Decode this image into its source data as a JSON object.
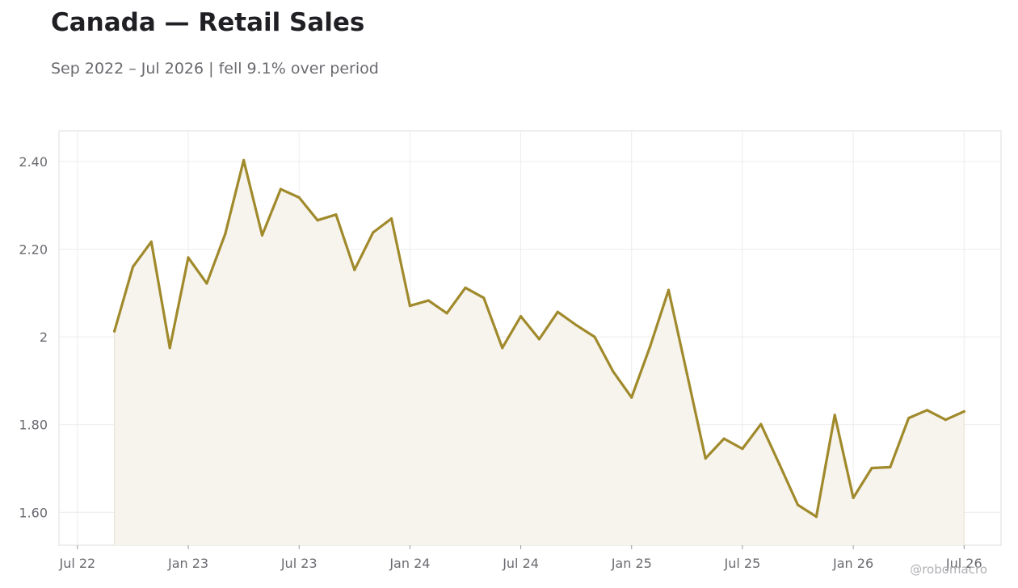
{
  "title": "Canada — Retail Sales",
  "subtitle": "Sep 2022 – Jul 2026 | fell 9.1% over period",
  "credit": "@robomacro",
  "colors": {
    "line": "#a08a2c",
    "fill": "#f7f4ee",
    "grid": "#ececec",
    "frame": "#dcdcdc"
  },
  "chart_data": {
    "type": "area",
    "title": "Canada — Retail Sales",
    "subtitle": "Sep 2022 – Jul 2026 | fell 9.1% over period",
    "xlabel": "",
    "ylabel": "",
    "ylim": [
      1.525,
      2.47
    ],
    "xlim": [
      "2022-06",
      "2026-09"
    ],
    "grid": true,
    "y_ticks": [
      1.6,
      1.8,
      2.0,
      2.2,
      2.4
    ],
    "y_tick_labels": [
      "1.60",
      "1.80",
      "2",
      "2.20",
      "2.40"
    ],
    "x_ticks": [
      "2022-07",
      "2023-01",
      "2023-07",
      "2024-01",
      "2024-07",
      "2025-01",
      "2025-07",
      "2026-01",
      "2026-07"
    ],
    "x_tick_labels": [
      "Jul 22",
      "Jan 23",
      "Jul 23",
      "Jan 24",
      "Jul 24",
      "Jan 25",
      "Jul 25",
      "Jan 26",
      "Jul 26"
    ],
    "series": [
      {
        "values": [
          [
            "2022-09",
            2.013
          ],
          [
            "2022-10",
            2.16
          ],
          [
            "2022-11",
            2.217
          ],
          [
            "2022-12",
            1.975
          ],
          [
            "2023-01",
            2.181
          ],
          [
            "2023-02",
            2.122
          ],
          [
            "2023-03",
            2.235
          ],
          [
            "2023-04",
            2.403
          ],
          [
            "2023-05",
            2.232
          ],
          [
            "2023-06",
            2.337
          ],
          [
            "2023-07",
            2.318
          ],
          [
            "2023-08",
            2.266
          ],
          [
            "2023-09",
            2.279
          ],
          [
            "2023-10",
            2.153
          ],
          [
            "2023-11",
            2.238
          ],
          [
            "2023-12",
            2.27
          ],
          [
            "2024-01",
            2.071
          ],
          [
            "2024-02",
            2.083
          ],
          [
            "2024-03",
            2.054
          ],
          [
            "2024-04",
            2.112
          ],
          [
            "2024-05",
            2.089
          ],
          [
            "2024-06",
            1.975
          ],
          [
            "2024-07",
            2.047
          ],
          [
            "2024-08",
            1.995
          ],
          [
            "2024-09",
            2.057
          ],
          [
            "2024-10",
            2.027
          ],
          [
            "2024-11",
            2.0
          ],
          [
            "2024-12",
            1.921
          ],
          [
            "2025-01",
            1.862
          ],
          [
            "2025-02",
            1.978
          ],
          [
            "2025-03",
            2.107
          ],
          [
            "2025-04",
            1.916
          ],
          [
            "2025-05",
            1.723
          ],
          [
            "2025-06",
            1.768
          ],
          [
            "2025-07",
            1.745
          ],
          [
            "2025-08",
            1.801
          ],
          [
            "2025-09",
            1.71
          ],
          [
            "2025-10",
            1.617
          ],
          [
            "2025-11",
            1.59
          ],
          [
            "2025-12",
            1.822
          ],
          [
            "2026-01",
            1.633
          ],
          [
            "2026-02",
            1.701
          ],
          [
            "2026-03",
            1.703
          ],
          [
            "2026-04",
            1.815
          ],
          [
            "2026-05",
            1.833
          ],
          [
            "2026-06",
            1.811
          ],
          [
            "2026-07",
            1.83
          ]
        ]
      }
    ]
  }
}
